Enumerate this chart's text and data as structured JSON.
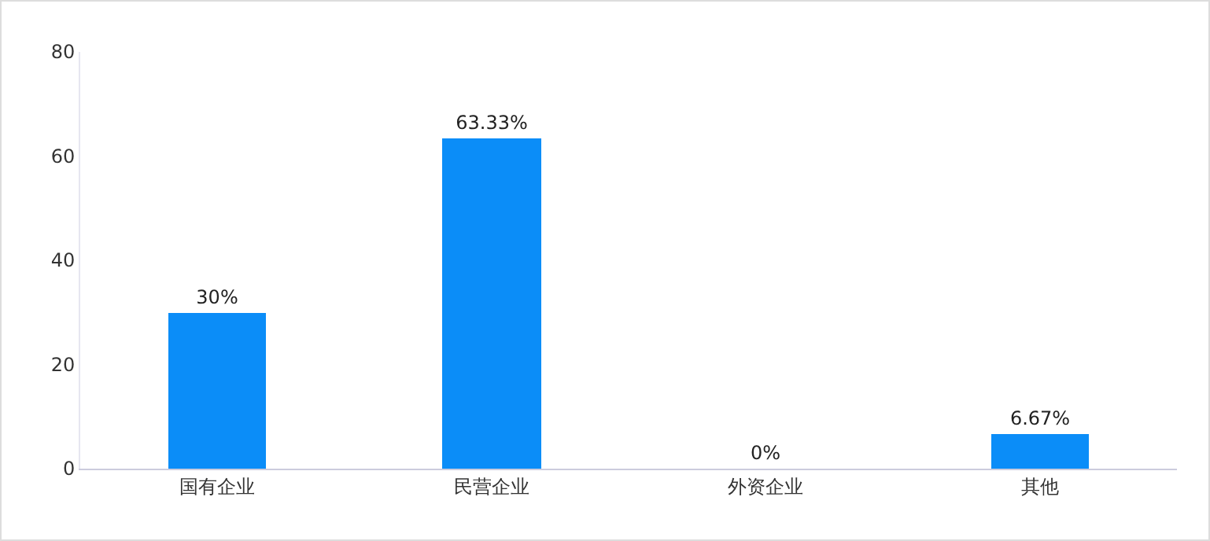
{
  "chart_data": {
    "type": "bar",
    "categories": [
      "国有企业",
      "民营企业",
      "外资企业",
      "其他"
    ],
    "values": [
      30,
      63.33,
      0,
      6.67
    ],
    "color": "#0b8df8",
    "value_labels": [
      "30%",
      "63.33%",
      "0%",
      "6.67%"
    ],
    "ylim": [
      0,
      80
    ],
    "yticks": [
      0,
      20,
      40,
      60,
      80
    ],
    "grid": false,
    "legend": false
  }
}
